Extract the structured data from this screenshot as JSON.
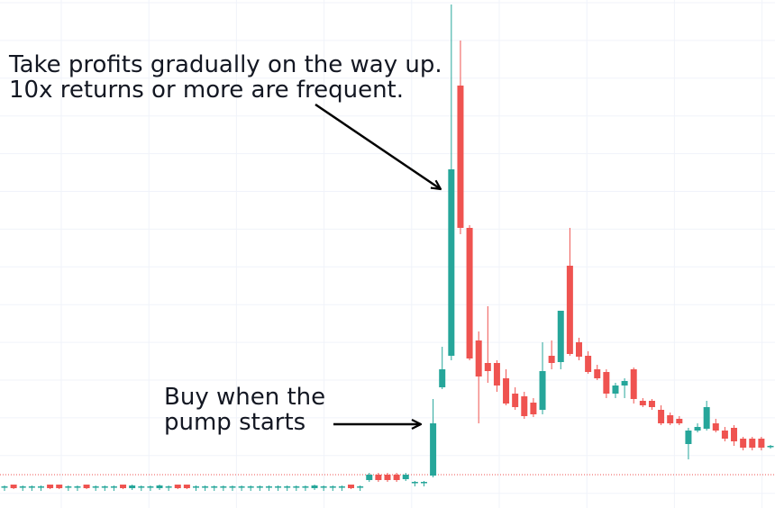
{
  "chart_data": {
    "type": "candlestick",
    "up_color": "#26a69a",
    "down_color": "#ef5350",
    "grid": true,
    "price_line": 33,
    "annotations": [
      {
        "lines": [
          "Take profits gradually on the way up.",
          "10x returns or more are frequent."
        ]
      },
      {
        "lines": [
          "Buy when the",
          "pump starts"
        ]
      }
    ],
    "open": [
      20,
      22,
      20,
      20,
      20,
      22,
      22,
      20,
      20,
      22,
      20,
      20,
      20,
      22,
      18,
      20,
      20,
      18,
      20,
      22,
      22,
      20,
      20,
      20,
      20,
      20,
      20,
      20,
      20,
      20,
      20,
      20,
      20,
      20,
      18,
      20,
      20,
      20,
      22,
      20,
      27,
      33,
      33,
      33,
      28,
      25,
      25,
      32,
      130,
      165,
      465,
      307,
      182,
      157,
      157,
      140,
      123,
      120,
      113,
      105,
      165,
      158,
      265,
      180,
      165,
      150,
      147,
      123,
      132,
      150,
      115,
      115,
      105,
      99,
      95,
      67,
      82,
      84,
      90,
      82,
      85,
      73,
      73,
      73,
      64
    ],
    "high": [
      21,
      22,
      21,
      21,
      21,
      22,
      22,
      21,
      21,
      22,
      21,
      21,
      21,
      22,
      22,
      21,
      21,
      22,
      21,
      22,
      22,
      21,
      21,
      21,
      21,
      21,
      21,
      21,
      21,
      21,
      21,
      21,
      21,
      21,
      22,
      21,
      21,
      21,
      22,
      21,
      35,
      35,
      35,
      35,
      35,
      26,
      26,
      117,
      175,
      555,
      515,
      310,
      192,
      220,
      160,
      150,
      130,
      125,
      118,
      180,
      182,
      215,
      307,
      185,
      170,
      155,
      150,
      135,
      140,
      152,
      118,
      117,
      110,
      102,
      98,
      85,
      90,
      115,
      95,
      86,
      88,
      75,
      75,
      75,
      66
    ],
    "low": [
      15,
      17,
      15,
      15,
      15,
      17,
      17,
      15,
      15,
      17,
      15,
      15,
      15,
      17,
      16,
      15,
      15,
      16,
      15,
      17,
      17,
      15,
      15,
      15,
      15,
      15,
      15,
      15,
      15,
      15,
      15,
      15,
      15,
      15,
      16,
      15,
      15,
      15,
      17,
      15,
      25,
      25,
      25,
      25,
      26,
      20,
      20,
      30,
      128,
      160,
      300,
      160,
      90,
      135,
      125,
      110,
      105,
      95,
      97,
      100,
      150,
      150,
      165,
      160,
      145,
      138,
      118,
      118,
      118,
      112,
      108,
      105,
      88,
      88,
      88,
      50,
      80,
      82,
      80,
      70,
      65,
      60,
      60,
      60,
      62
    ],
    "close": [
      20,
      18,
      20,
      20,
      20,
      18,
      18,
      20,
      20,
      18,
      20,
      20,
      20,
      18,
      21,
      20,
      20,
      21,
      20,
      18,
      18,
      20,
      20,
      20,
      20,
      20,
      20,
      20,
      20,
      20,
      20,
      20,
      20,
      20,
      21,
      20,
      20,
      20,
      18,
      20,
      33,
      27,
      27,
      27,
      33,
      25,
      25,
      90,
      150,
      372,
      307,
      162,
      142,
      148,
      132,
      112,
      108,
      98,
      100,
      148,
      157,
      215,
      167,
      164,
      147,
      140,
      123,
      132,
      137,
      117,
      110,
      108,
      90,
      90,
      90,
      82,
      86,
      108,
      82,
      73,
      70,
      63,
      63,
      63,
      65
    ]
  }
}
